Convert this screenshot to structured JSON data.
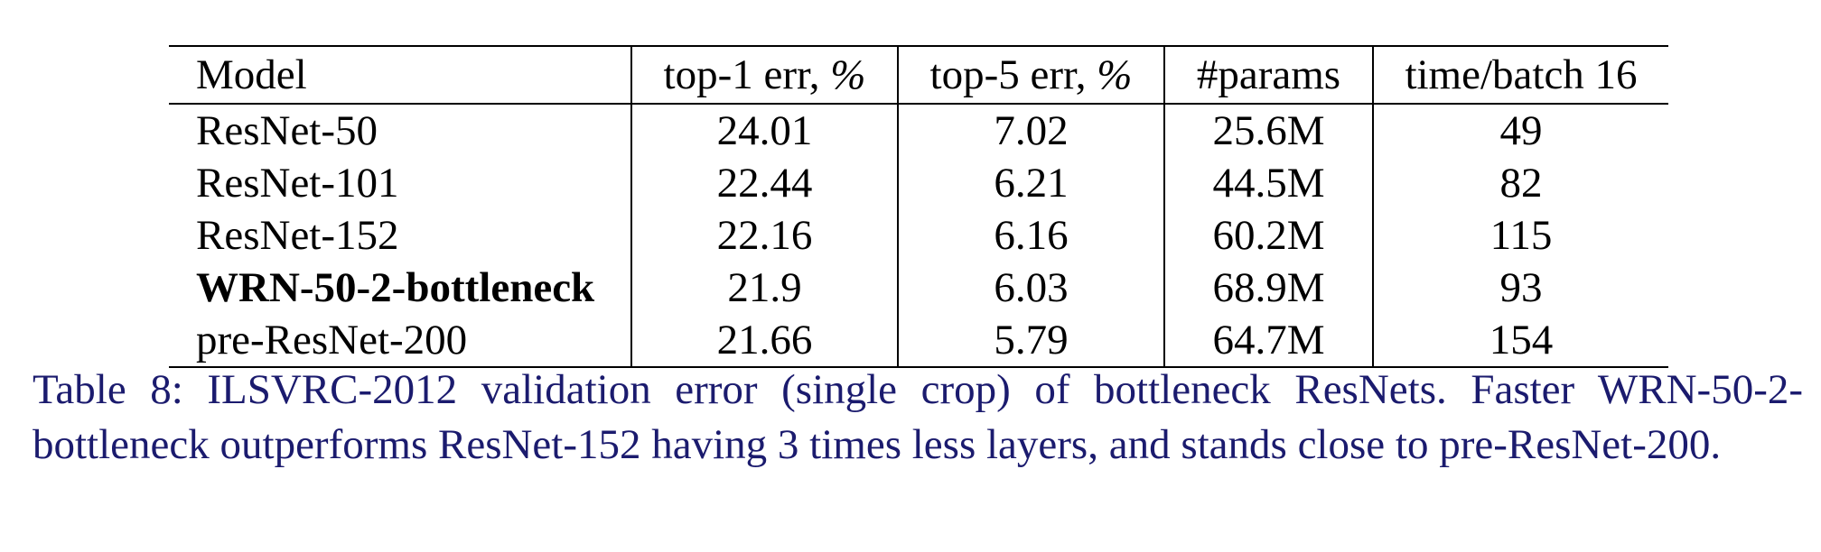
{
  "table": {
    "headers": {
      "model": "Model",
      "top1": "top-1 err,",
      "top5": "top-5 err,",
      "percent_sign": "%",
      "params": "#params",
      "time": "time/batch 16"
    },
    "rows": [
      {
        "model": "ResNet-50",
        "top1": "24.01",
        "top5": "7.02",
        "params": "25.6M",
        "time": "49",
        "bold": false
      },
      {
        "model": "ResNet-101",
        "top1": "22.44",
        "top5": "6.21",
        "params": "44.5M",
        "time": "82",
        "bold": false
      },
      {
        "model": "ResNet-152",
        "top1": "22.16",
        "top5": "6.16",
        "params": "60.2M",
        "time": "115",
        "bold": false
      },
      {
        "model": "WRN-50-2-bottleneck",
        "top1": "21.9",
        "top5": "6.03",
        "params": "68.9M",
        "time": "93",
        "bold": true
      },
      {
        "model": "pre-ResNet-200",
        "top1": "21.66",
        "top5": "5.79",
        "params": "64.7M",
        "time": "154",
        "bold": false
      }
    ]
  },
  "caption": {
    "text": "Table 8: ILSVRC-2012 validation error (single crop) of bottleneck ResNets. Faster WRN-50-2-bottleneck outperforms ResNet-152 having 3 times less layers, and stands close to pre-ResNet-200."
  },
  "colors": {
    "caption": "#1b1b6e",
    "text": "#000000"
  }
}
